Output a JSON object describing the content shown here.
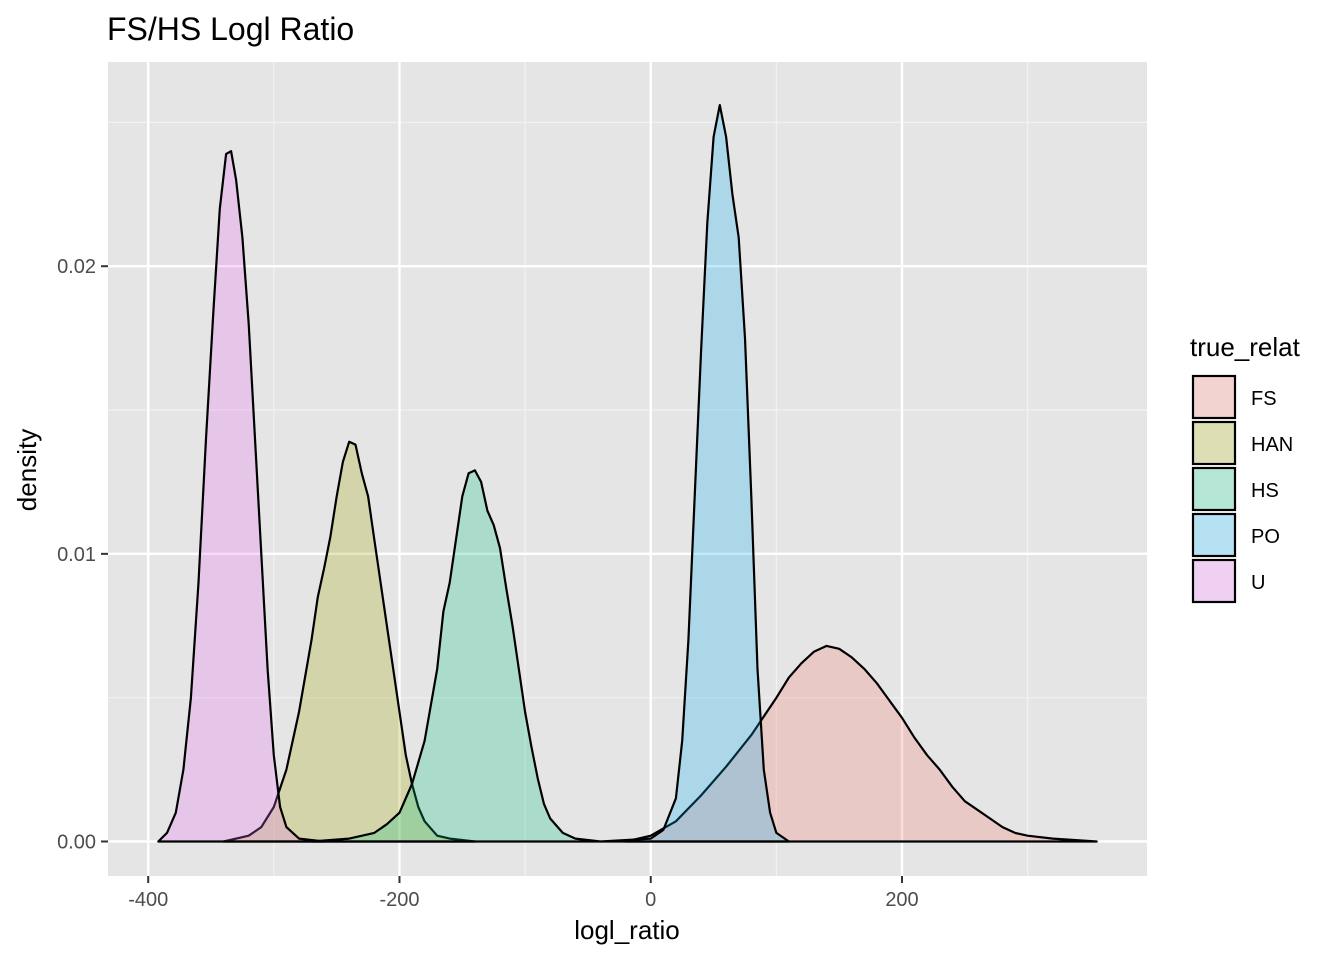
{
  "chart_data": {
    "type": "area",
    "subtype": "density",
    "title": "FS/HS Logl Ratio",
    "xlabel": "logl_ratio",
    "ylabel": "density",
    "xlim": [
      -432,
      395
    ],
    "ylim": [
      -0.0012,
      0.0271
    ],
    "x_ticks": [
      -400,
      -200,
      0,
      200
    ],
    "x_tick_labels": [
      "-400",
      "-200",
      "0",
      "200"
    ],
    "x_minor_ticks": [
      -300,
      -100,
      100,
      300
    ],
    "y_ticks": [
      0.0,
      0.01,
      0.02
    ],
    "y_tick_labels": [
      "0.00",
      "0.01",
      "0.02"
    ],
    "y_minor_ticks": [
      0.005,
      0.015,
      0.025
    ],
    "grid": true,
    "background": "#e5e5e5",
    "fill_alpha": 0.25,
    "legend": {
      "title": "true_relat",
      "position": "right"
    },
    "series": [
      {
        "name": "FS",
        "color": "#f8766d",
        "points": [
          [
            -20,
            0
          ],
          [
            0,
            0.0002
          ],
          [
            20,
            0.0007
          ],
          [
            40,
            0.0016
          ],
          [
            60,
            0.0026
          ],
          [
            80,
            0.0037
          ],
          [
            100,
            0.005
          ],
          [
            110,
            0.0057
          ],
          [
            120,
            0.0062
          ],
          [
            130,
            0.0066
          ],
          [
            140,
            0.0068
          ],
          [
            150,
            0.0067
          ],
          [
            160,
            0.0064
          ],
          [
            170,
            0.006
          ],
          [
            180,
            0.0055
          ],
          [
            190,
            0.0049
          ],
          [
            200,
            0.0043
          ],
          [
            210,
            0.0036
          ],
          [
            220,
            0.003
          ],
          [
            230,
            0.0025
          ],
          [
            240,
            0.0019
          ],
          [
            250,
            0.0014
          ],
          [
            260,
            0.0011
          ],
          [
            270,
            0.0008
          ],
          [
            280,
            0.0005
          ],
          [
            290,
            0.0003
          ],
          [
            300,
            0.0002
          ],
          [
            320,
            0.0001
          ],
          [
            355,
            0.0
          ]
        ]
      },
      {
        "name": "HAN",
        "color": "#a3a500",
        "points": [
          [
            -340,
            0
          ],
          [
            -320,
            0.0002
          ],
          [
            -310,
            0.0005
          ],
          [
            -300,
            0.0012
          ],
          [
            -290,
            0.0025
          ],
          [
            -280,
            0.0045
          ],
          [
            -270,
            0.007
          ],
          [
            -265,
            0.0085
          ],
          [
            -260,
            0.0095
          ],
          [
            -255,
            0.0106
          ],
          [
            -250,
            0.012
          ],
          [
            -245,
            0.0132
          ],
          [
            -240,
            0.0139
          ],
          [
            -235,
            0.0138
          ],
          [
            -230,
            0.0128
          ],
          [
            -225,
            0.012
          ],
          [
            -220,
            0.0105
          ],
          [
            -215,
            0.009
          ],
          [
            -210,
            0.0075
          ],
          [
            -205,
            0.006
          ],
          [
            -200,
            0.0045
          ],
          [
            -195,
            0.003
          ],
          [
            -190,
            0.002
          ],
          [
            -185,
            0.0012
          ],
          [
            -180,
            0.0007
          ],
          [
            -170,
            0.0002
          ],
          [
            -160,
            0.0001
          ],
          [
            -140,
            0.0
          ]
        ]
      },
      {
        "name": "HS",
        "color": "#00bf7d",
        "points": [
          [
            -270,
            0
          ],
          [
            -240,
            0.0001
          ],
          [
            -220,
            0.0003
          ],
          [
            -210,
            0.0006
          ],
          [
            -200,
            0.001
          ],
          [
            -190,
            0.002
          ],
          [
            -180,
            0.0035
          ],
          [
            -170,
            0.006
          ],
          [
            -165,
            0.008
          ],
          [
            -160,
            0.009
          ],
          [
            -155,
            0.0105
          ],
          [
            -150,
            0.012
          ],
          [
            -145,
            0.0128
          ],
          [
            -140,
            0.0129
          ],
          [
            -135,
            0.0125
          ],
          [
            -130,
            0.0115
          ],
          [
            -125,
            0.011
          ],
          [
            -120,
            0.0102
          ],
          [
            -115,
            0.0088
          ],
          [
            -110,
            0.0075
          ],
          [
            -105,
            0.006
          ],
          [
            -100,
            0.0045
          ],
          [
            -95,
            0.0033
          ],
          [
            -90,
            0.0022
          ],
          [
            -85,
            0.0013
          ],
          [
            -80,
            0.0008
          ],
          [
            -70,
            0.0003
          ],
          [
            -60,
            0.0001
          ],
          [
            -40,
            0.0
          ]
        ]
      },
      {
        "name": "PO",
        "color": "#00b0f6",
        "points": [
          [
            -40,
            0
          ],
          [
            0,
            0.0001
          ],
          [
            10,
            0.0004
          ],
          [
            20,
            0.0015
          ],
          [
            25,
            0.0035
          ],
          [
            30,
            0.007
          ],
          [
            35,
            0.012
          ],
          [
            40,
            0.017
          ],
          [
            45,
            0.0215
          ],
          [
            50,
            0.0245
          ],
          [
            55,
            0.0256
          ],
          [
            60,
            0.0245
          ],
          [
            65,
            0.0225
          ],
          [
            70,
            0.021
          ],
          [
            75,
            0.0175
          ],
          [
            80,
            0.012
          ],
          [
            85,
            0.006
          ],
          [
            90,
            0.0025
          ],
          [
            95,
            0.001
          ],
          [
            100,
            0.0003
          ],
          [
            110,
            0.0
          ]
        ]
      },
      {
        "name": "U",
        "color": "#e76bf3",
        "points": [
          [
            -392,
            0
          ],
          [
            -385,
            0.0003
          ],
          [
            -378,
            0.001
          ],
          [
            -372,
            0.0025
          ],
          [
            -366,
            0.005
          ],
          [
            -360,
            0.009
          ],
          [
            -354,
            0.014
          ],
          [
            -348,
            0.0185
          ],
          [
            -343,
            0.022
          ],
          [
            -338,
            0.0239
          ],
          [
            -334,
            0.024
          ],
          [
            -330,
            0.023
          ],
          [
            -325,
            0.021
          ],
          [
            -320,
            0.018
          ],
          [
            -315,
            0.014
          ],
          [
            -310,
            0.01
          ],
          [
            -305,
            0.006
          ],
          [
            -300,
            0.003
          ],
          [
            -295,
            0.0012
          ],
          [
            -290,
            0.0005
          ],
          [
            -280,
            0.0001
          ],
          [
            -260,
            0.0
          ]
        ]
      }
    ]
  }
}
